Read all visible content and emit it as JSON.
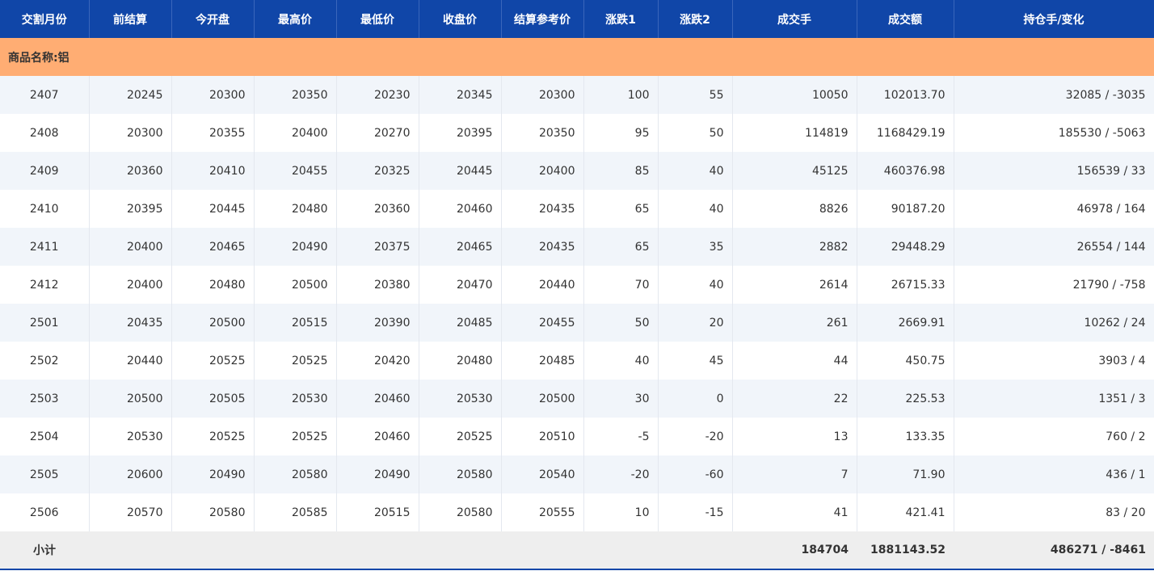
{
  "table": {
    "headers": [
      "交割月份",
      "前结算",
      "今开盘",
      "最高价",
      "最低价",
      "收盘价",
      "结算参考价",
      "涨跌1",
      "涨跌2",
      "成交手",
      "成交额",
      "持仓手/变化"
    ],
    "section": "商品名称:铝",
    "rows": [
      [
        "2407",
        "20245",
        "20300",
        "20350",
        "20230",
        "20345",
        "20300",
        "100",
        "55",
        "10050",
        "102013.70",
        "32085 / -3035"
      ],
      [
        "2408",
        "20300",
        "20355",
        "20400",
        "20270",
        "20395",
        "20350",
        "95",
        "50",
        "114819",
        "1168429.19",
        "185530 / -5063"
      ],
      [
        "2409",
        "20360",
        "20410",
        "20455",
        "20325",
        "20445",
        "20400",
        "85",
        "40",
        "45125",
        "460376.98",
        "156539 / 33"
      ],
      [
        "2410",
        "20395",
        "20445",
        "20480",
        "20360",
        "20460",
        "20435",
        "65",
        "40",
        "8826",
        "90187.20",
        "46978 / 164"
      ],
      [
        "2411",
        "20400",
        "20465",
        "20490",
        "20375",
        "20465",
        "20435",
        "65",
        "35",
        "2882",
        "29448.29",
        "26554 / 144"
      ],
      [
        "2412",
        "20400",
        "20480",
        "20500",
        "20380",
        "20470",
        "20440",
        "70",
        "40",
        "2614",
        "26715.33",
        "21790 / -758"
      ],
      [
        "2501",
        "20435",
        "20500",
        "20515",
        "20390",
        "20485",
        "20455",
        "50",
        "20",
        "261",
        "2669.91",
        "10262 / 24"
      ],
      [
        "2502",
        "20440",
        "20525",
        "20525",
        "20420",
        "20480",
        "20485",
        "40",
        "45",
        "44",
        "450.75",
        "3903 / 4"
      ],
      [
        "2503",
        "20500",
        "20505",
        "20530",
        "20460",
        "20530",
        "20500",
        "30",
        "0",
        "22",
        "225.53",
        "1351 / 3"
      ],
      [
        "2504",
        "20530",
        "20525",
        "20525",
        "20460",
        "20525",
        "20510",
        "-5",
        "-20",
        "13",
        "133.35",
        "760 / 2"
      ],
      [
        "2505",
        "20600",
        "20490",
        "20580",
        "20490",
        "20580",
        "20540",
        "-20",
        "-60",
        "7",
        "71.90",
        "436 / 1"
      ],
      [
        "2506",
        "20570",
        "20580",
        "20585",
        "20515",
        "20580",
        "20555",
        "10",
        "-15",
        "41",
        "421.41",
        "83 / 20"
      ]
    ],
    "subtotal": {
      "label": "小计",
      "volume": "184704",
      "turnover": "1881143.52",
      "open_interest": "486271 / -8461"
    }
  }
}
